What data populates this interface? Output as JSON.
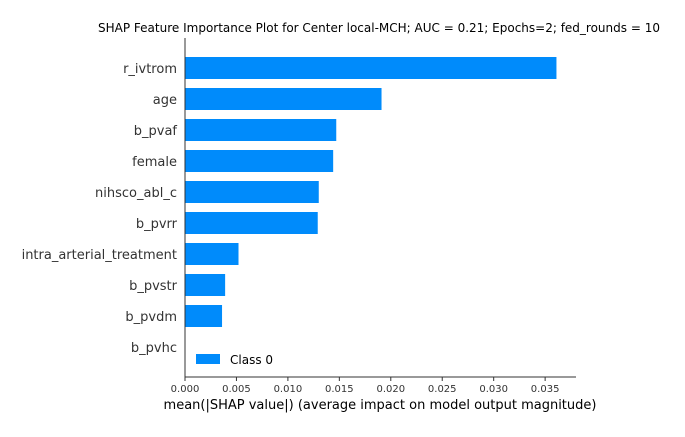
{
  "chart_data": {
    "type": "bar",
    "orientation": "horizontal",
    "title": "SHAP Feature Importance Plot for Center local-MCH; AUC = 0.21; Epochs=2; fed_rounds = 10",
    "xlabel": "mean(|SHAP value|) (average impact on model output magnitude)",
    "ylabel": "",
    "xlim": [
      0,
      0.038
    ],
    "x_ticks": [
      "0.000",
      "0.005",
      "0.010",
      "0.015",
      "0.020",
      "0.025",
      "0.030",
      "0.035"
    ],
    "categories": [
      "r_ivtrom",
      "age",
      "b_pvaf",
      "female",
      "nihsco_abl_c",
      "b_pvrr",
      "intra_arterial_treatment",
      "b_pvstr",
      "b_pvdm",
      "b_pvhc"
    ],
    "series": [
      {
        "name": "Class 0",
        "color": "#008bfb",
        "values": [
          0.0361,
          0.0191,
          0.0147,
          0.0144,
          0.013,
          0.0129,
          0.0052,
          0.0039,
          0.0036,
          0.0
        ]
      }
    ],
    "legend": {
      "position": "lower-left",
      "entries": [
        "Class 0"
      ]
    },
    "grid": false
  }
}
